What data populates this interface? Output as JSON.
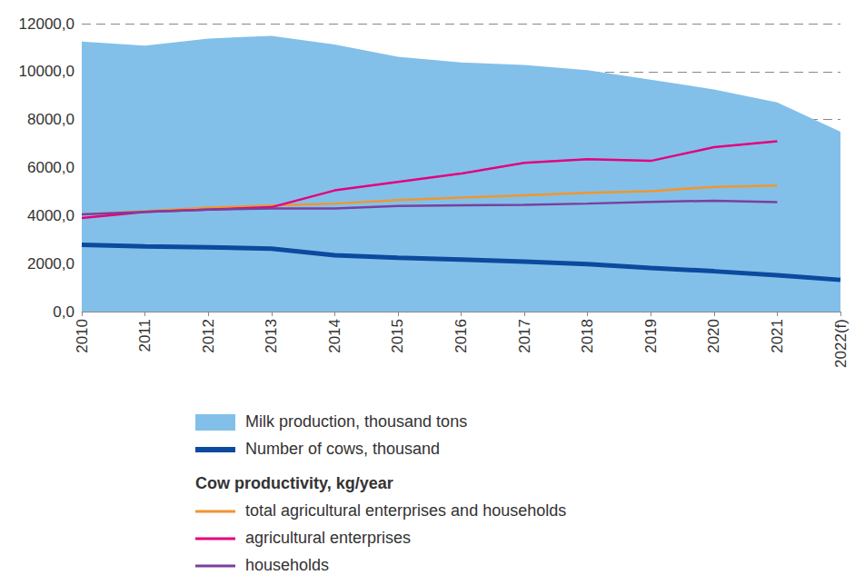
{
  "chart_data": {
    "type": "line",
    "categories": [
      "2010",
      "2011",
      "2012",
      "2013",
      "2014",
      "2015",
      "2016",
      "2017",
      "2018",
      "2019",
      "2020",
      "2021",
      "2022(f)"
    ],
    "ylim": [
      0,
      12000
    ],
    "yticks": [
      {
        "value": 0,
        "label": "0,0"
      },
      {
        "value": 2000,
        "label": "2000,0"
      },
      {
        "value": 4000,
        "label": "4000,0"
      },
      {
        "value": 6000,
        "label": "6000,0"
      },
      {
        "value": 8000,
        "label": "8000,0"
      },
      {
        "value": 10000,
        "label": "10000,0"
      },
      {
        "value": 12000,
        "label": "12000,0"
      }
    ],
    "grid": true,
    "legend": "bottom",
    "legend_group_title": "Cow productivity, kg/year",
    "series": [
      {
        "name": "Milk production, thousand tons",
        "type": "area",
        "color": "#82c0ea",
        "values": [
          11250,
          11080,
          11380,
          11490,
          11130,
          10620,
          10380,
          10280,
          10060,
          9660,
          9260,
          8720,
          7500
        ]
      },
      {
        "name": "Number of cows, thousand",
        "type": "line",
        "color": "#0b4a9e",
        "values": [
          2780,
          2720,
          2680,
          2620,
          2350,
          2240,
          2170,
          2080,
          1980,
          1820,
          1680,
          1510,
          1320
        ]
      },
      {
        "name": "total agricultural enterprises and households",
        "type": "line",
        "color": "#f0962e",
        "values": [
          4050,
          4180,
          4330,
          4420,
          4500,
          4650,
          4750,
          4850,
          4950,
          5020,
          5200,
          5250,
          null
        ]
      },
      {
        "name": "agricultural enterprises",
        "type": "line",
        "color": "#e5007d",
        "values": [
          3900,
          4150,
          4250,
          4350,
          5050,
          5400,
          5750,
          6200,
          6350,
          6280,
          6850,
          7100,
          null
        ]
      },
      {
        "name": "households",
        "type": "line",
        "color": "#7b3f9e",
        "values": [
          4050,
          4150,
          4250,
          4300,
          4300,
          4400,
          4430,
          4450,
          4500,
          4570,
          4620,
          4560,
          null
        ]
      }
    ]
  }
}
